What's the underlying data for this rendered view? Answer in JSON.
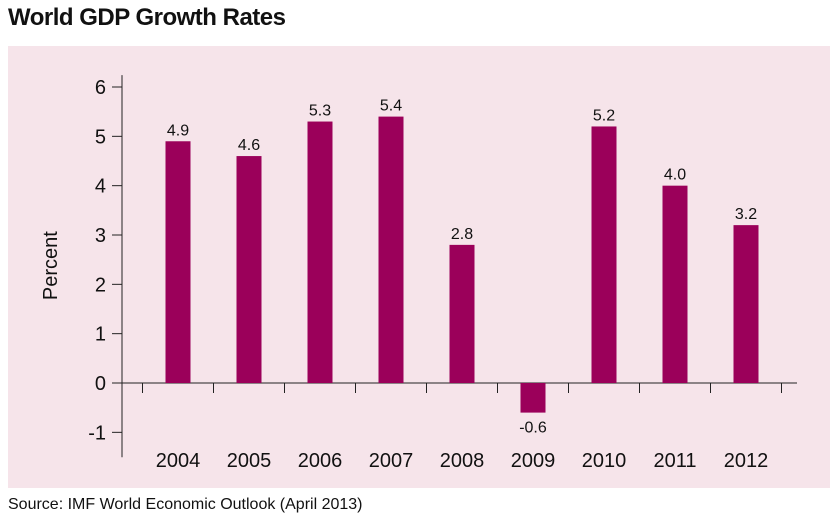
{
  "title": "World GDP Growth Rates",
  "source": "Source: IMF World Economic Outlook (April 2013)",
  "colors": {
    "bar": "#9b005a",
    "panel": "#f6e4ea",
    "axis": "#222222"
  },
  "chart_data": {
    "type": "bar",
    "title": "World GDP Growth Rates",
    "xlabel": "",
    "ylabel": "Percent",
    "categories": [
      "2004",
      "2005",
      "2006",
      "2007",
      "2008",
      "2009",
      "2010",
      "2011",
      "2012"
    ],
    "values": [
      4.9,
      4.6,
      5.3,
      5.4,
      2.8,
      -0.6,
      5.2,
      4.0,
      3.2
    ],
    "value_labels": [
      "4.9",
      "4.6",
      "5.3",
      "5.4",
      "2.8",
      "-0.6",
      "5.2",
      "4.0",
      "3.2"
    ],
    "yticks": [
      -1,
      0,
      1,
      2,
      3,
      4,
      5,
      6
    ],
    "ylim": [
      -1.2,
      6.2
    ],
    "grid": false,
    "legend": "none"
  }
}
